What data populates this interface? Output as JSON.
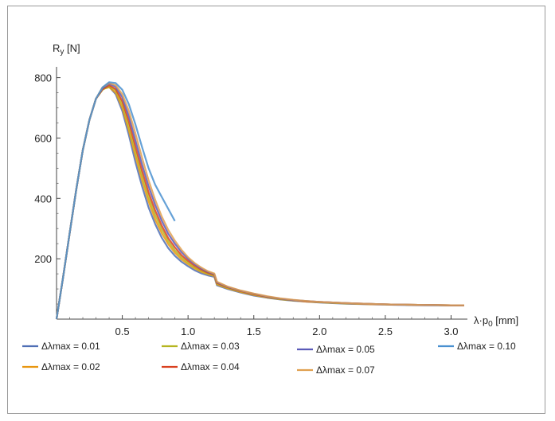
{
  "chart_data": {
    "type": "line",
    "ylabel_main": "R",
    "ylabel_sub": "y",
    "ylabel_unit": " [N]",
    "xlabel_main": "λ·p",
    "xlabel_sub": "0",
    "xlabel_unit": " [mm]",
    "xlim": [
      0,
      3.1
    ],
    "ylim": [
      0,
      820
    ],
    "xticks": [
      0.5,
      1.0,
      1.5,
      2.0,
      2.5,
      3.0
    ],
    "xtick_labels": [
      "0.5",
      "1.0",
      "1.5",
      "2.0",
      "2.5",
      "3.0"
    ],
    "yticks": [
      200,
      400,
      600,
      800
    ],
    "ytick_labels": [
      "200",
      "400",
      "600",
      "800"
    ],
    "grid": false,
    "series": [
      {
        "name": "Δλmax = 0.01",
        "color": "#4f6fb5",
        "points": [
          [
            0,
            0
          ],
          [
            0.05,
            140
          ],
          [
            0.1,
            285
          ],
          [
            0.15,
            430
          ],
          [
            0.2,
            560
          ],
          [
            0.25,
            660
          ],
          [
            0.3,
            730
          ],
          [
            0.35,
            765
          ],
          [
            0.4,
            770
          ],
          [
            0.45,
            745
          ],
          [
            0.5,
            690
          ],
          [
            0.55,
            610
          ],
          [
            0.6,
            520
          ],
          [
            0.65,
            440
          ],
          [
            0.7,
            370
          ],
          [
            0.75,
            315
          ],
          [
            0.8,
            270
          ],
          [
            0.85,
            235
          ],
          [
            0.9,
            210
          ],
          [
            0.95,
            190
          ],
          [
            1.0,
            175
          ],
          [
            1.05,
            162
          ],
          [
            1.1,
            152
          ],
          [
            1.15,
            145
          ],
          [
            1.2,
            140
          ],
          [
            1.22,
            112
          ],
          [
            1.3,
            100
          ],
          [
            1.4,
            88
          ],
          [
            1.5,
            78
          ],
          [
            1.6,
            71
          ],
          [
            1.7,
            65
          ],
          [
            1.8,
            61
          ],
          [
            1.9,
            58
          ],
          [
            2.0,
            55
          ],
          [
            2.2,
            51
          ],
          [
            2.4,
            49
          ],
          [
            2.6,
            47
          ],
          [
            2.8,
            46
          ],
          [
            3.0,
            45
          ],
          [
            3.1,
            45
          ]
        ]
      },
      {
        "name": "Δλmax = 0.02",
        "color": "#e8960f",
        "points": [
          [
            0,
            0
          ],
          [
            0.05,
            140
          ],
          [
            0.1,
            285
          ],
          [
            0.15,
            430
          ],
          [
            0.2,
            560
          ],
          [
            0.25,
            660
          ],
          [
            0.3,
            730
          ],
          [
            0.35,
            762
          ],
          [
            0.4,
            768
          ],
          [
            0.45,
            750
          ],
          [
            0.5,
            700
          ],
          [
            0.55,
            625
          ],
          [
            0.6,
            540
          ],
          [
            0.65,
            460
          ],
          [
            0.7,
            390
          ],
          [
            0.75,
            330
          ],
          [
            0.8,
            285
          ],
          [
            0.85,
            248
          ],
          [
            0.9,
            220
          ],
          [
            0.95,
            198
          ],
          [
            1.0,
            182
          ],
          [
            1.05,
            168
          ],
          [
            1.1,
            157
          ],
          [
            1.15,
            149
          ],
          [
            1.2,
            143
          ],
          [
            1.22,
            115
          ],
          [
            1.3,
            102
          ],
          [
            1.4,
            90
          ],
          [
            1.5,
            80
          ],
          [
            1.6,
            72
          ],
          [
            1.7,
            66
          ],
          [
            1.8,
            62
          ],
          [
            1.9,
            58
          ],
          [
            2.0,
            56
          ],
          [
            2.2,
            52
          ],
          [
            2.4,
            49
          ],
          [
            2.6,
            48
          ],
          [
            2.8,
            47
          ],
          [
            3.0,
            46
          ],
          [
            3.1,
            46
          ]
        ]
      },
      {
        "name": "Δλmax = 0.03",
        "color": "#b5b520",
        "points": [
          [
            0,
            0
          ],
          [
            0.05,
            140
          ],
          [
            0.1,
            285
          ],
          [
            0.15,
            430
          ],
          [
            0.2,
            560
          ],
          [
            0.25,
            660
          ],
          [
            0.3,
            730
          ],
          [
            0.35,
            760
          ],
          [
            0.4,
            772
          ],
          [
            0.45,
            758
          ],
          [
            0.5,
            712
          ],
          [
            0.55,
            640
          ],
          [
            0.6,
            555
          ],
          [
            0.65,
            475
          ],
          [
            0.7,
            405
          ],
          [
            0.75,
            345
          ],
          [
            0.8,
            298
          ],
          [
            0.85,
            258
          ],
          [
            0.9,
            228
          ],
          [
            0.95,
            205
          ],
          [
            1.0,
            187
          ],
          [
            1.05,
            172
          ],
          [
            1.1,
            160
          ],
          [
            1.15,
            151
          ],
          [
            1.2,
            145
          ],
          [
            1.22,
            118
          ],
          [
            1.3,
            104
          ],
          [
            1.4,
            92
          ],
          [
            1.5,
            82
          ],
          [
            1.6,
            73
          ],
          [
            1.7,
            67
          ],
          [
            1.8,
            62
          ],
          [
            1.9,
            59
          ],
          [
            2.0,
            56
          ],
          [
            2.2,
            52
          ],
          [
            2.4,
            50
          ],
          [
            2.6,
            48
          ],
          [
            2.8,
            47
          ],
          [
            3.0,
            46
          ],
          [
            3.1,
            46
          ]
        ]
      },
      {
        "name": "Δλmax = 0.04",
        "color": "#d9401f",
        "points": [
          [
            0,
            0
          ],
          [
            0.05,
            140
          ],
          [
            0.1,
            285
          ],
          [
            0.15,
            430
          ],
          [
            0.2,
            560
          ],
          [
            0.25,
            660
          ],
          [
            0.3,
            730
          ],
          [
            0.35,
            762
          ],
          [
            0.4,
            775
          ],
          [
            0.45,
            762
          ],
          [
            0.5,
            722
          ],
          [
            0.55,
            655
          ],
          [
            0.6,
            572
          ],
          [
            0.65,
            492
          ],
          [
            0.7,
            420
          ],
          [
            0.75,
            360
          ],
          [
            0.8,
            310
          ],
          [
            0.85,
            268
          ],
          [
            0.9,
            238
          ],
          [
            0.95,
            212
          ],
          [
            1.0,
            193
          ],
          [
            1.05,
            177
          ],
          [
            1.1,
            164
          ],
          [
            1.15,
            154
          ],
          [
            1.2,
            147
          ],
          [
            1.22,
            120
          ],
          [
            1.3,
            106
          ],
          [
            1.4,
            93
          ],
          [
            1.5,
            83
          ],
          [
            1.6,
            74
          ],
          [
            1.7,
            68
          ],
          [
            1.8,
            63
          ],
          [
            1.9,
            59
          ],
          [
            2.0,
            57
          ],
          [
            2.2,
            53
          ],
          [
            2.4,
            50
          ],
          [
            2.6,
            48
          ],
          [
            2.8,
            47
          ],
          [
            3.0,
            46
          ],
          [
            3.1,
            46
          ]
        ]
      },
      {
        "name": "Δλmax = 0.05",
        "color": "#5a5ab8",
        "points": [
          [
            0,
            0
          ],
          [
            0.05,
            140
          ],
          [
            0.1,
            285
          ],
          [
            0.15,
            430
          ],
          [
            0.2,
            560
          ],
          [
            0.25,
            660
          ],
          [
            0.3,
            730
          ],
          [
            0.35,
            765
          ],
          [
            0.4,
            780
          ],
          [
            0.45,
            770
          ],
          [
            0.5,
            735
          ],
          [
            0.55,
            672
          ],
          [
            0.6,
            592
          ],
          [
            0.65,
            512
          ],
          [
            0.7,
            440
          ],
          [
            0.75,
            378
          ],
          [
            0.8,
            326
          ],
          [
            0.85,
            282
          ],
          [
            0.9,
            250
          ],
          [
            0.95,
            222
          ],
          [
            1.0,
            200
          ],
          [
            1.05,
            182
          ],
          [
            1.1,
            168
          ],
          [
            1.15,
            157
          ],
          [
            1.2,
            149
          ],
          [
            1.22,
            122
          ],
          [
            1.3,
            107
          ],
          [
            1.4,
            94
          ],
          [
            1.5,
            84
          ],
          [
            1.6,
            75
          ],
          [
            1.7,
            68
          ],
          [
            1.8,
            63
          ],
          [
            1.9,
            60
          ],
          [
            2.0,
            57
          ],
          [
            2.2,
            53
          ],
          [
            2.4,
            50
          ],
          [
            2.6,
            48
          ],
          [
            2.8,
            47
          ],
          [
            3.0,
            46
          ],
          [
            3.1,
            46
          ]
        ]
      },
      {
        "name": "Δλmax = 0.07",
        "color": "#e0a050",
        "points": [
          [
            0,
            0
          ],
          [
            0.05,
            140
          ],
          [
            0.1,
            285
          ],
          [
            0.15,
            430
          ],
          [
            0.2,
            560
          ],
          [
            0.25,
            660
          ],
          [
            0.3,
            730
          ],
          [
            0.35,
            768
          ],
          [
            0.4,
            782
          ],
          [
            0.45,
            775
          ],
          [
            0.5,
            745
          ],
          [
            0.55,
            690
          ],
          [
            0.6,
            615
          ],
          [
            0.65,
            535
          ],
          [
            0.7,
            460
          ],
          [
            0.75,
            395
          ],
          [
            0.8,
            340
          ],
          [
            0.85,
            295
          ],
          [
            0.9,
            260
          ],
          [
            0.95,
            230
          ],
          [
            1.0,
            205
          ],
          [
            1.05,
            186
          ],
          [
            1.1,
            171
          ],
          [
            1.15,
            159
          ],
          [
            1.2,
            151
          ],
          [
            1.22,
            124
          ],
          [
            1.3,
            108
          ],
          [
            1.4,
            95
          ],
          [
            1.5,
            85
          ],
          [
            1.6,
            76
          ],
          [
            1.7,
            69
          ],
          [
            1.8,
            64
          ],
          [
            1.9,
            60
          ],
          [
            2.0,
            57
          ],
          [
            2.2,
            53
          ],
          [
            2.4,
            50
          ],
          [
            2.6,
            48
          ],
          [
            2.8,
            47
          ],
          [
            3.0,
            46
          ],
          [
            3.1,
            46
          ]
        ]
      },
      {
        "name": "Δλmax = 0.10",
        "color": "#4a90d0",
        "points": [
          [
            0,
            0
          ],
          [
            0.05,
            140
          ],
          [
            0.1,
            285
          ],
          [
            0.15,
            430
          ],
          [
            0.2,
            560
          ],
          [
            0.25,
            660
          ],
          [
            0.3,
            730
          ],
          [
            0.35,
            768
          ],
          [
            0.4,
            785
          ],
          [
            0.45,
            782
          ],
          [
            0.5,
            760
          ],
          [
            0.55,
            712
          ],
          [
            0.6,
            645
          ],
          [
            0.65,
            570
          ],
          [
            0.7,
            500
          ],
          [
            0.75,
            445
          ],
          [
            0.8,
            405
          ],
          [
            0.85,
            365
          ],
          [
            0.9,
            325
          ]
        ]
      }
    ],
    "legend_layout": [
      {
        "series": 0,
        "col": 0,
        "row": 0
      },
      {
        "series": 1,
        "col": 0,
        "row": 1
      },
      {
        "series": 2,
        "col": 1,
        "row": 0
      },
      {
        "series": 3,
        "col": 1,
        "row": 1
      },
      {
        "series": 4,
        "col": 2,
        "row": 0
      },
      {
        "series": 5,
        "col": 2,
        "row": 1
      },
      {
        "series": 6,
        "col": 3,
        "row": 0
      }
    ]
  }
}
